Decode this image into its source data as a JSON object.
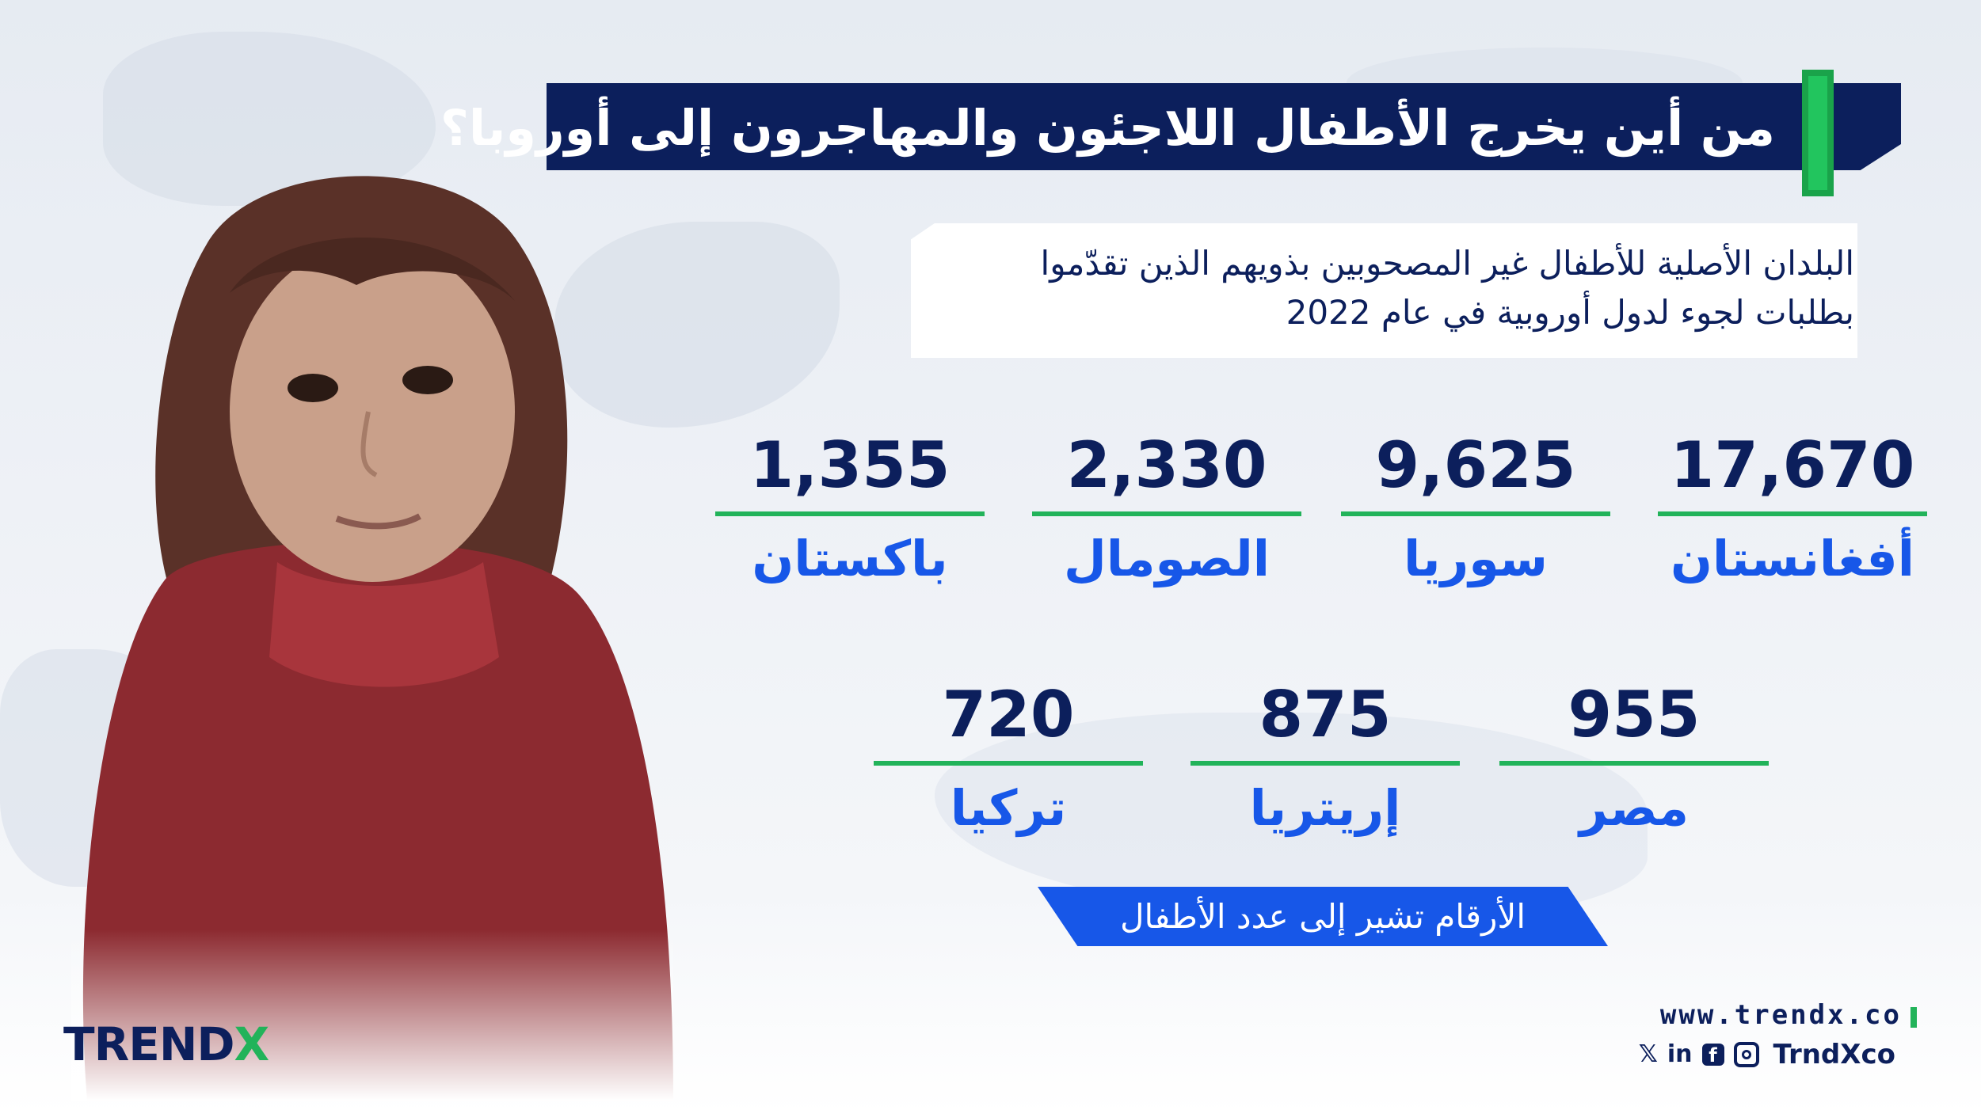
{
  "title": "من أين يخرج الأطفال اللاجئون والمهاجرون إلى أوروبا؟",
  "subtitle_line1": "البلدان الأصلية للأطفال غير المصحوبين بذويهم الذين تقدّموا",
  "subtitle_line2": "بطلبات لجوء لدول أوروبية في عام 2022",
  "stats_row1": [
    {
      "country": "أفغانستان",
      "value": "17,670"
    },
    {
      "country": "سوريا",
      "value": "9,625"
    },
    {
      "country": "الصومال",
      "value": "2,330"
    },
    {
      "country": "باكستان",
      "value": "1,355"
    }
  ],
  "stats_row2": [
    {
      "country": "مصر",
      "value": "955"
    },
    {
      "country": "إريتريا",
      "value": "875"
    },
    {
      "country": "تركيا",
      "value": "720"
    }
  ],
  "note": "الأرقام تشير إلى عدد الأطفال",
  "logo": {
    "main": "TREND",
    "accent": "X"
  },
  "footer": {
    "url": "www.trendx.co",
    "handle": "TrndXco",
    "icons": [
      "x-icon",
      "linkedin-icon",
      "facebook-icon",
      "instagram-icon"
    ]
  },
  "colors": {
    "navy": "#0c1f5c",
    "green": "#22b35a",
    "blue": "#1757e8"
  }
}
